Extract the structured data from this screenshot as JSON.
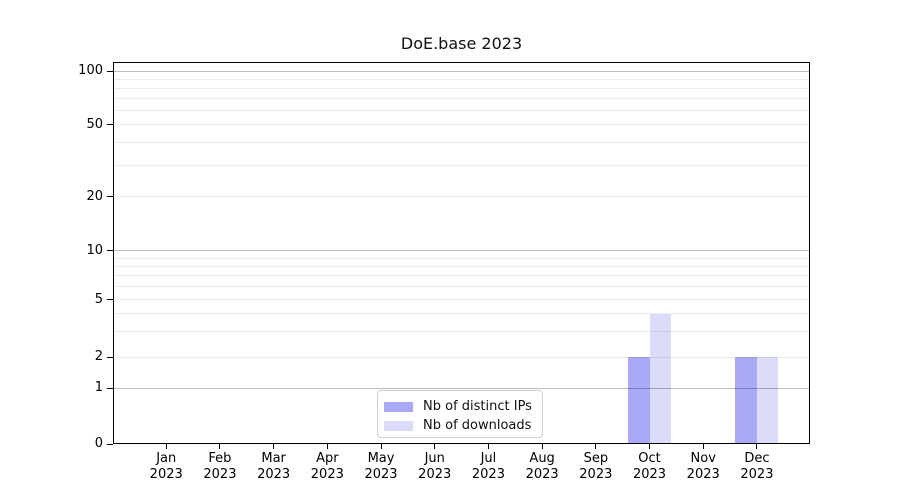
{
  "chart_data": {
    "type": "bar",
    "title": "DoE.base 2023",
    "x_tick_months": [
      "Jan",
      "Feb",
      "Mar",
      "Apr",
      "May",
      "Jun",
      "Jul",
      "Aug",
      "Sep",
      "Oct",
      "Nov",
      "Dec"
    ],
    "x_tick_year": "2023",
    "series": [
      {
        "name": "Nb of distinct IPs",
        "color": "#a9a9f8",
        "values": [
          null,
          null,
          null,
          null,
          null,
          null,
          null,
          null,
          null,
          2,
          null,
          2
        ]
      },
      {
        "name": "Nb of downloads",
        "color": "#dbdbfa",
        "values": [
          null,
          null,
          null,
          null,
          null,
          null,
          null,
          null,
          null,
          4,
          null,
          2
        ]
      }
    ],
    "y_tick_values": [
      0,
      1,
      2,
      5,
      10,
      20,
      50,
      100
    ],
    "y_tick_labels": [
      "0",
      "1",
      "2",
      "5",
      "10",
      "20",
      "50",
      "100"
    ],
    "y_major_gridline_values": [
      1,
      10,
      100
    ],
    "y_minor_gridline_values": [
      2,
      3,
      4,
      5,
      6,
      7,
      8,
      9,
      20,
      30,
      40,
      50,
      60,
      70,
      80,
      90
    ],
    "yscale": "symlog",
    "ylim": [
      0,
      110
    ],
    "grid": "horizontal major+minor",
    "legend_position": "lower center inside"
  }
}
